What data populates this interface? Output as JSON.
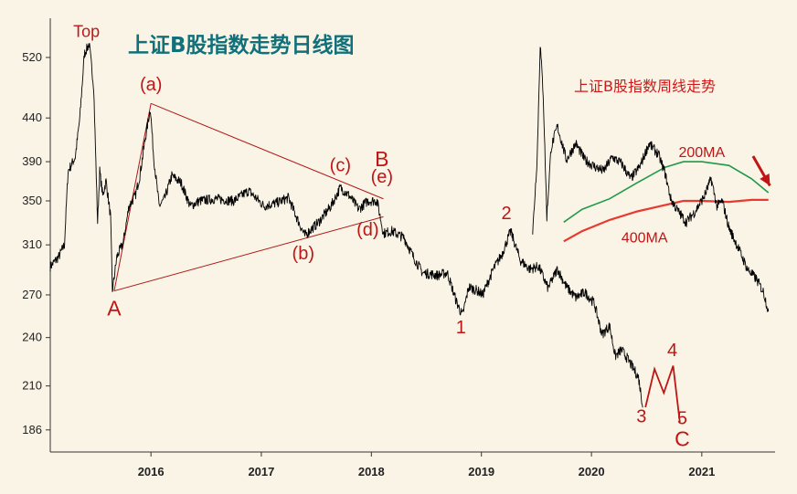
{
  "chart_data": {
    "type": "line",
    "title": "上证B股指数走势日线图",
    "subtitle": "上证B股指数周线走势",
    "y_scale": "log",
    "ylim": [
      175,
      565
    ],
    "xlim": [
      "2015-02-01",
      "2021-09-01"
    ],
    "y_ticks": [
      186,
      210,
      240,
      270,
      310,
      350,
      390,
      440,
      520
    ],
    "x_ticks": [
      {
        "date": "2016-01-01",
        "label": "2016"
      },
      {
        "date": "2017-01-01",
        "label": "2017"
      },
      {
        "date": "2018-01-01",
        "label": "2018"
      },
      {
        "date": "2019-01-01",
        "label": "2019"
      },
      {
        "date": "2020-01-01",
        "label": "2020"
      },
      {
        "date": "2021-01-01",
        "label": "2021"
      }
    ],
    "grid": false,
    "colors": {
      "price": "#000000",
      "annotation": "#c01515",
      "triangle": "#b01818",
      "ma200": "#1e9a48",
      "ma400": "#e83a2e",
      "title": "#11707a",
      "arrow": "#c01515"
    },
    "series": [
      {
        "name": "",
        "points": [
          [
            "2015-02-01",
            292
          ],
          [
            "2015-03-01",
            300
          ],
          [
            "2015-03-20",
            310
          ],
          [
            "2015-04-01",
            380
          ],
          [
            "2015-04-25",
            395
          ],
          [
            "2015-05-10",
            440
          ],
          [
            "2015-05-25",
            525
          ],
          [
            "2015-06-10",
            540
          ],
          [
            "2015-06-25",
            480
          ],
          [
            "2015-07-08",
            330
          ],
          [
            "2015-07-15",
            380
          ],
          [
            "2015-07-25",
            355
          ],
          [
            "2015-08-05",
            370
          ],
          [
            "2015-08-20",
            335
          ],
          [
            "2015-08-26",
            273
          ],
          [
            "2015-09-10",
            300
          ],
          [
            "2015-10-01",
            312
          ],
          [
            "2015-10-20",
            345
          ],
          [
            "2015-11-10",
            355
          ],
          [
            "2015-11-25",
            375
          ],
          [
            "2015-12-15",
            420
          ],
          [
            "2015-12-30",
            452
          ],
          [
            "2016-01-10",
            395
          ],
          [
            "2016-01-28",
            345
          ],
          [
            "2016-02-15",
            352
          ],
          [
            "2016-03-10",
            375
          ],
          [
            "2016-04-10",
            368
          ],
          [
            "2016-05-10",
            345
          ],
          [
            "2016-06-10",
            350
          ],
          [
            "2016-08-01",
            352
          ],
          [
            "2016-10-01",
            350
          ],
          [
            "2016-11-20",
            360
          ],
          [
            "2017-01-10",
            345
          ],
          [
            "2017-02-20",
            348
          ],
          [
            "2017-04-01",
            353
          ],
          [
            "2017-05-05",
            330
          ],
          [
            "2017-05-25",
            318
          ],
          [
            "2017-07-10",
            330
          ],
          [
            "2017-08-20",
            345
          ],
          [
            "2017-09-20",
            363
          ],
          [
            "2017-10-20",
            355
          ],
          [
            "2017-11-20",
            342
          ],
          [
            "2017-12-20",
            350
          ],
          [
            "2018-01-20",
            350
          ],
          [
            "2018-02-10",
            320
          ],
          [
            "2018-03-10",
            322
          ],
          [
            "2018-04-20",
            316
          ],
          [
            "2018-05-20",
            300
          ],
          [
            "2018-06-20",
            287
          ],
          [
            "2018-08-10",
            285
          ],
          [
            "2018-09-10",
            287
          ],
          [
            "2018-10-10",
            265
          ],
          [
            "2018-10-30",
            255
          ],
          [
            "2018-11-20",
            276
          ],
          [
            "2018-12-20",
            273
          ],
          [
            "2019-01-05",
            270
          ],
          [
            "2019-02-10",
            290
          ],
          [
            "2019-03-10",
            302
          ],
          [
            "2019-04-08",
            322
          ],
          [
            "2019-05-10",
            297
          ],
          [
            "2019-06-10",
            290
          ],
          [
            "2019-07-10",
            292
          ],
          [
            "2019-08-10",
            275
          ],
          [
            "2019-09-10",
            290
          ],
          [
            "2019-10-10",
            276
          ],
          [
            "2019-11-10",
            268
          ],
          [
            "2019-12-10",
            272
          ],
          [
            "2020-01-10",
            264
          ],
          [
            "2020-02-05",
            242
          ],
          [
            "2020-03-01",
            248
          ],
          [
            "2020-03-20",
            228
          ],
          [
            "2020-04-10",
            232
          ],
          [
            "2020-05-01",
            226
          ],
          [
            "2020-06-05",
            215
          ],
          [
            "2020-06-20",
            198
          ]
        ]
      },
      {
        "name": "",
        "points": [
          [
            "2019-06-20",
            320
          ],
          [
            "2019-07-05",
            395
          ],
          [
            "2019-07-15",
            540
          ],
          [
            "2019-07-25",
            470
          ],
          [
            "2019-08-06",
            335
          ],
          [
            "2019-08-20",
            405
          ],
          [
            "2019-09-10",
            430
          ],
          [
            "2019-10-10",
            392
          ],
          [
            "2019-11-10",
            410
          ],
          [
            "2019-12-10",
            392
          ],
          [
            "2020-01-10",
            385
          ],
          [
            "2020-02-10",
            380
          ],
          [
            "2020-03-10",
            395
          ],
          [
            "2020-04-10",
            388
          ],
          [
            "2020-05-10",
            372
          ],
          [
            "2020-06-10",
            385
          ],
          [
            "2020-07-10",
            410
          ],
          [
            "2020-08-10",
            398
          ],
          [
            "2020-09-01",
            378
          ],
          [
            "2020-09-20",
            352
          ],
          [
            "2020-10-10",
            342
          ],
          [
            "2020-11-10",
            330
          ],
          [
            "2020-12-10",
            340
          ],
          [
            "2021-01-10",
            355
          ],
          [
            "2021-02-01",
            372
          ],
          [
            "2021-02-20",
            345
          ],
          [
            "2021-03-10",
            350
          ],
          [
            "2021-04-01",
            325
          ],
          [
            "2021-05-01",
            308
          ],
          [
            "2021-06-01",
            290
          ],
          [
            "2021-07-01",
            282
          ],
          [
            "2021-07-25",
            272
          ],
          [
            "2021-08-10",
            258
          ]
        ]
      },
      {
        "name": "200MA",
        "points": [
          [
            "2019-10-01",
            330
          ],
          [
            "2019-12-01",
            342
          ],
          [
            "2020-03-01",
            352
          ],
          [
            "2020-06-01",
            368
          ],
          [
            "2020-09-01",
            384
          ],
          [
            "2020-11-01",
            390
          ],
          [
            "2021-01-01",
            390
          ],
          [
            "2021-04-01",
            386
          ],
          [
            "2021-06-15",
            372
          ],
          [
            "2021-08-10",
            358
          ]
        ]
      },
      {
        "name": "400MA",
        "points": [
          [
            "2019-10-01",
            313
          ],
          [
            "2019-12-01",
            322
          ],
          [
            "2020-03-01",
            332
          ],
          [
            "2020-06-01",
            340
          ],
          [
            "2020-09-01",
            346
          ],
          [
            "2020-11-01",
            350
          ],
          [
            "2021-01-01",
            350
          ],
          [
            "2021-04-01",
            349
          ],
          [
            "2021-06-15",
            351
          ],
          [
            "2021-08-10",
            351
          ]
        ]
      }
    ],
    "trendlines": [
      {
        "from": [
          "2015-09-01",
          273
        ],
        "to": [
          "2016-01-01",
          458
        ]
      },
      {
        "from": [
          "2016-01-01",
          458
        ],
        "to": [
          "2018-02-10",
          352
        ]
      },
      {
        "from": [
          "2015-09-01",
          273
        ],
        "to": [
          "2018-02-10",
          335
        ]
      }
    ],
    "wave_lines": [
      {
        "points": [
          [
            "2020-06-28",
            198
          ],
          [
            "2020-07-28",
            220
          ],
          [
            "2020-08-28",
            206
          ],
          [
            "2020-09-28",
            222
          ],
          [
            "2020-10-20",
            190
          ]
        ]
      }
    ],
    "annotations": [
      {
        "text": "Top",
        "at": [
          "2015-06-01",
          550
        ]
      },
      {
        "text": "(a)",
        "at": [
          "2016-01-01",
          475
        ]
      },
      {
        "text": "(b)",
        "at": [
          "2017-05-20",
          298
        ]
      },
      {
        "text": "(c)",
        "at": [
          "2017-09-20",
          380
        ]
      },
      {
        "text": "(d)",
        "at": [
          "2017-12-20",
          318
        ]
      },
      {
        "text": "(e)",
        "at": [
          "2018-02-05",
          368
        ]
      },
      {
        "text": "B",
        "at": [
          "2018-02-05",
          385
        ]
      },
      {
        "text": "A",
        "at": [
          "2015-09-01",
          255
        ]
      },
      {
        "text": "1",
        "at": [
          "2018-10-25",
          243
        ]
      },
      {
        "text": "2",
        "at": [
          "2019-03-25",
          333
        ]
      },
      {
        "text": "3",
        "at": [
          "2020-06-15",
          190
        ]
      },
      {
        "text": "4",
        "at": [
          "2020-09-25",
          228
        ]
      },
      {
        "text": "5",
        "at": [
          "2020-10-28",
          189
        ]
      },
      {
        "text": "C",
        "at": [
          "2020-10-28",
          178
        ]
      },
      {
        "text": "200MA",
        "at": [
          "2021-01-01",
          395
        ]
      },
      {
        "text": "400MA",
        "at": [
          "2020-06-25",
          312
        ]
      }
    ],
    "arrow": {
      "from": [
        "2021-06-20",
        396
      ],
      "to": [
        "2021-08-15",
        365
      ]
    }
  }
}
